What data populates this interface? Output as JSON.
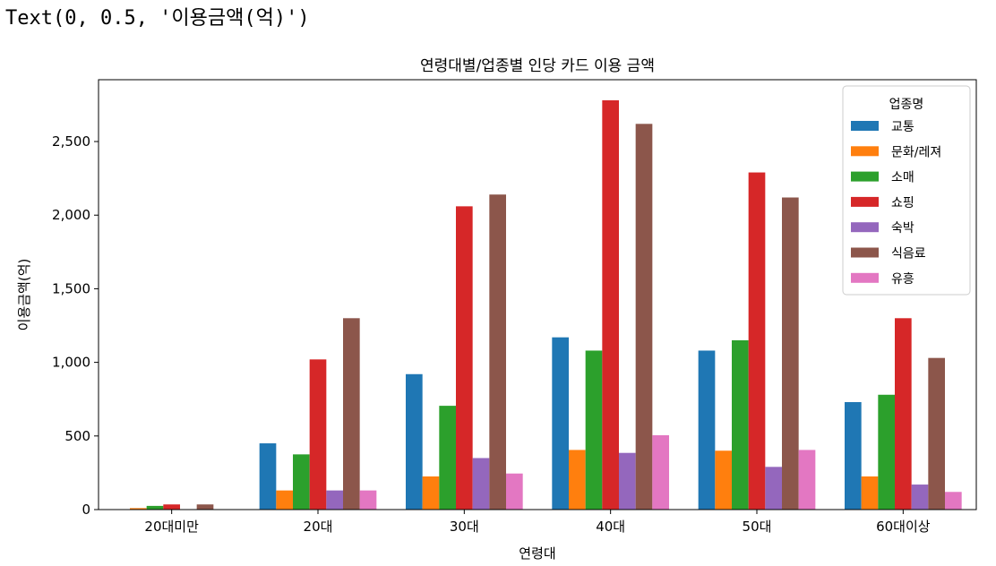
{
  "output_text": "Text(0, 0.5, '이용금액(억)')",
  "chart_data": {
    "type": "bar",
    "title": "연령대별/업종별 인당 카드 이용 금액",
    "xlabel": "연령대",
    "ylabel": "이용금액(억)",
    "categories": [
      "20대미만",
      "20대",
      "30대",
      "40대",
      "50대",
      "60대이상"
    ],
    "ylim": [
      0,
      2920
    ],
    "yticks": [
      0,
      500,
      1000,
      1500,
      2000,
      2500
    ],
    "ytick_labels": [
      "0",
      "500",
      "1,000",
      "1,500",
      "2,000",
      "2,500"
    ],
    "legend_title": "업종명",
    "legend_position": "top-right",
    "grid": false,
    "series": [
      {
        "name": "교통",
        "color": "#1f77b4",
        "values": [
          0,
          450,
          920,
          1170,
          1080,
          730
        ]
      },
      {
        "name": "문화/레져",
        "color": "#ff7f0e",
        "values": [
          10,
          130,
          225,
          405,
          400,
          225
        ]
      },
      {
        "name": "소매",
        "color": "#2ca02c",
        "values": [
          25,
          375,
          705,
          1080,
          1150,
          780
        ]
      },
      {
        "name": "쇼핑",
        "color": "#d62728",
        "values": [
          35,
          1020,
          2060,
          2780,
          2290,
          1300
        ]
      },
      {
        "name": "숙박",
        "color": "#9467bd",
        "values": [
          0,
          130,
          350,
          385,
          290,
          170
        ]
      },
      {
        "name": "식음료",
        "color": "#8c564b",
        "values": [
          35,
          1300,
          2140,
          2620,
          2120,
          1030
        ]
      },
      {
        "name": "유흥",
        "color": "#e377c2",
        "values": [
          0,
          130,
          245,
          505,
          405,
          120
        ]
      }
    ]
  }
}
